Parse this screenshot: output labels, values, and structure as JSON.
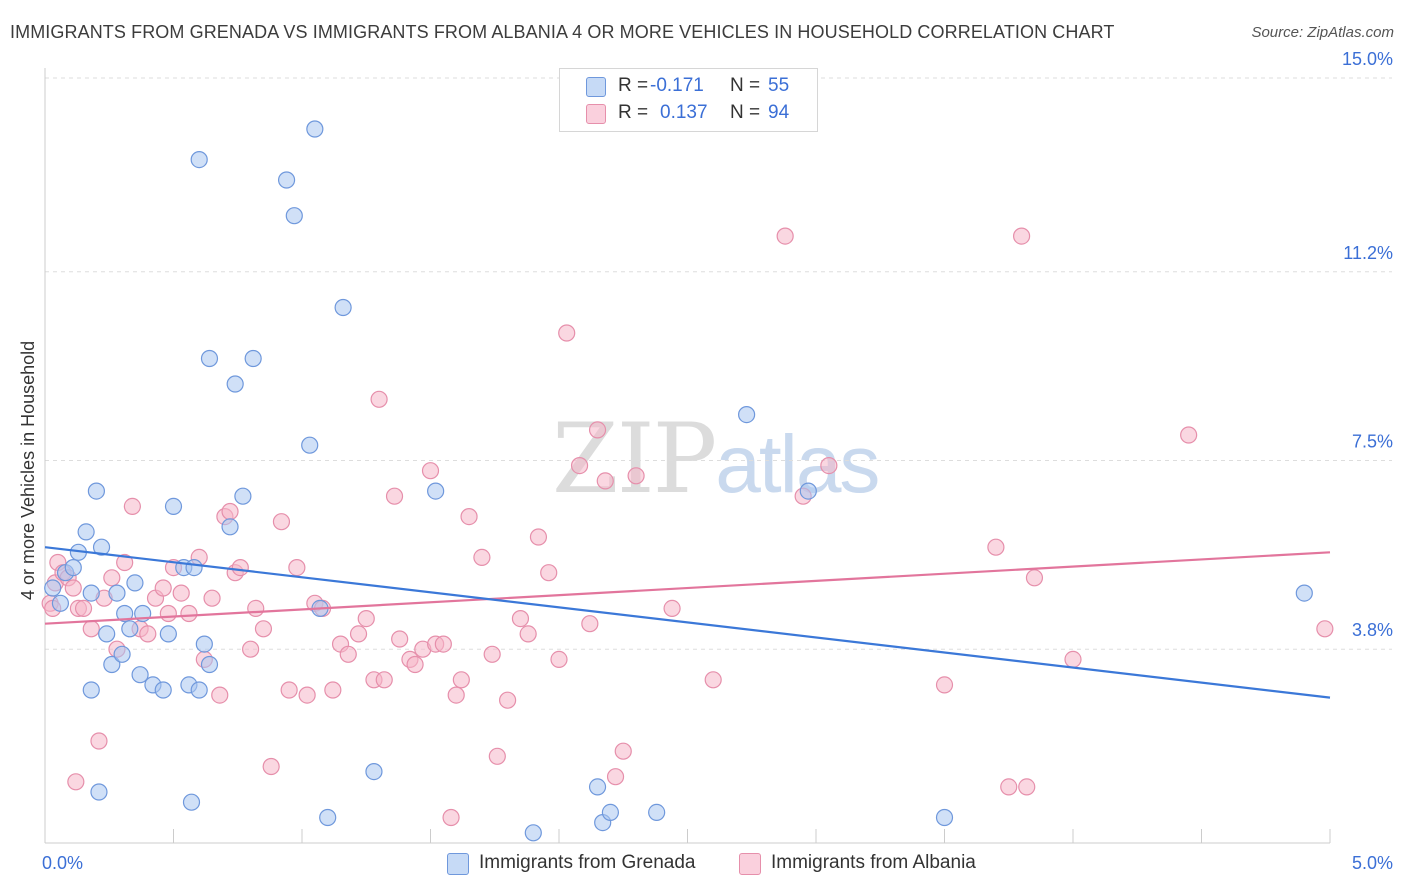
{
  "title": "IMMIGRANTS FROM GRENADA VS IMMIGRANTS FROM ALBANIA 4 OR MORE VEHICLES IN HOUSEHOLD CORRELATION CHART",
  "source": "Source: ZipAtlas.com",
  "watermark": {
    "zip": "ZIP",
    "atlas": "atlas"
  },
  "legend": {
    "rows": [
      {
        "r_label": "R =",
        "r_value": "-0.171",
        "n_label": "N =",
        "n_value": "55",
        "color": "#a9c6f0"
      },
      {
        "r_label": "R =",
        "r_value": "0.137",
        "n_label": "N =",
        "n_value": "94",
        "color": "#f5b6c9"
      }
    ]
  },
  "bottom_legend": {
    "grenada": "Immigrants from Grenada",
    "albania": "Immigrants from Albania"
  },
  "colors": {
    "blue_fill": "#a9c6f0",
    "blue_stroke": "#6f98dc",
    "blue_line": "#3b78d8",
    "pink_fill": "#f5b6c9",
    "pink_stroke": "#e68fab",
    "pink_line": "#e2759c",
    "tick_label": "#3b6fd6",
    "grid": "#dddddd"
  },
  "chart_data": {
    "type": "scatter",
    "title": "IMMIGRANTS FROM GRENADA VS IMMIGRANTS FROM ALBANIA 4 OR MORE VEHICLES IN HOUSEHOLD CORRELATION CHART",
    "xlabel": "",
    "ylabel": "4 or more Vehicles in Household",
    "xlim": [
      0,
      5.0
    ],
    "ylim": [
      0,
      15.0
    ],
    "x_tick_labels": [
      "0.0%",
      "5.0%"
    ],
    "y_ticks": [
      3.8,
      7.5,
      11.2,
      15.0
    ],
    "y_tick_labels": [
      "3.8%",
      "7.5%",
      "11.2%",
      "15.0%"
    ],
    "grid": true,
    "legend_position": "top-center",
    "series": [
      {
        "name": "Immigrants from Grenada",
        "R": -0.171,
        "N": 55,
        "trend": {
          "x": [
            0,
            5.0
          ],
          "y": [
            5.8,
            2.85
          ]
        },
        "points": [
          [
            0.03,
            5.0
          ],
          [
            0.06,
            4.7
          ],
          [
            0.08,
            5.3
          ],
          [
            0.11,
            5.4
          ],
          [
            0.13,
            5.7
          ],
          [
            0.16,
            6.1
          ],
          [
            0.18,
            4.9
          ],
          [
            0.2,
            6.9
          ],
          [
            0.22,
            5.8
          ],
          [
            0.24,
            4.1
          ],
          [
            0.26,
            3.5
          ],
          [
            0.28,
            4.9
          ],
          [
            0.3,
            3.7
          ],
          [
            0.31,
            4.5
          ],
          [
            0.33,
            4.2
          ],
          [
            0.35,
            5.1
          ],
          [
            0.37,
            3.3
          ],
          [
            0.38,
            4.5
          ],
          [
            0.42,
            3.1
          ],
          [
            0.46,
            3.0
          ],
          [
            0.48,
            4.1
          ],
          [
            0.5,
            6.6
          ],
          [
            0.54,
            5.4
          ],
          [
            0.56,
            3.1
          ],
          [
            0.58,
            5.4
          ],
          [
            0.6,
            3.0
          ],
          [
            0.62,
            3.9
          ],
          [
            0.64,
            3.5
          ],
          [
            0.18,
            3.0
          ],
          [
            0.21,
            1.0
          ],
          [
            0.57,
            0.8
          ],
          [
            0.6,
            13.4
          ],
          [
            0.64,
            9.5
          ],
          [
            0.72,
            6.2
          ],
          [
            0.74,
            9.0
          ],
          [
            0.77,
            6.8
          ],
          [
            0.81,
            9.5
          ],
          [
            0.94,
            13.0
          ],
          [
            0.97,
            12.3
          ],
          [
            1.03,
            7.8
          ],
          [
            1.05,
            14.0
          ],
          [
            1.07,
            4.6
          ],
          [
            1.16,
            10.5
          ],
          [
            1.1,
            0.5
          ],
          [
            1.28,
            1.4
          ],
          [
            1.52,
            6.9
          ],
          [
            1.9,
            0.2
          ],
          [
            2.15,
            1.1
          ],
          [
            2.17,
            0.4
          ],
          [
            2.2,
            0.6
          ],
          [
            2.38,
            0.6
          ],
          [
            2.73,
            8.4
          ],
          [
            2.97,
            6.9
          ],
          [
            3.5,
            0.5
          ],
          [
            4.9,
            4.9
          ]
        ]
      },
      {
        "name": "Immigrants from Albania",
        "R": 0.137,
        "N": 94,
        "trend": {
          "x": [
            0,
            5.0
          ],
          "y": [
            4.3,
            5.7
          ]
        },
        "points": [
          [
            0.02,
            4.7
          ],
          [
            0.04,
            5.1
          ],
          [
            0.05,
            5.5
          ],
          [
            0.07,
            5.3
          ],
          [
            0.09,
            5.2
          ],
          [
            0.11,
            5.0
          ],
          [
            0.13,
            4.6
          ],
          [
            0.15,
            4.6
          ],
          [
            0.18,
            4.2
          ],
          [
            0.21,
            2.0
          ],
          [
            0.23,
            4.8
          ],
          [
            0.26,
            5.2
          ],
          [
            0.28,
            3.8
          ],
          [
            0.31,
            5.5
          ],
          [
            0.34,
            6.6
          ],
          [
            0.37,
            4.2
          ],
          [
            0.4,
            4.1
          ],
          [
            0.43,
            4.8
          ],
          [
            0.46,
            5.0
          ],
          [
            0.48,
            4.5
          ],
          [
            0.5,
            5.4
          ],
          [
            0.53,
            4.9
          ],
          [
            0.56,
            4.5
          ],
          [
            0.6,
            5.6
          ],
          [
            0.62,
            3.6
          ],
          [
            0.65,
            4.8
          ],
          [
            0.68,
            2.9
          ],
          [
            0.7,
            6.4
          ],
          [
            0.72,
            6.5
          ],
          [
            0.74,
            5.3
          ],
          [
            0.76,
            5.4
          ],
          [
            0.8,
            3.8
          ],
          [
            0.82,
            4.6
          ],
          [
            0.85,
            4.2
          ],
          [
            0.88,
            1.5
          ],
          [
            0.92,
            6.3
          ],
          [
            0.95,
            3.0
          ],
          [
            0.98,
            5.4
          ],
          [
            1.02,
            2.9
          ],
          [
            1.05,
            4.7
          ],
          [
            1.08,
            4.6
          ],
          [
            1.12,
            3.0
          ],
          [
            1.15,
            3.9
          ],
          [
            1.18,
            3.7
          ],
          [
            1.22,
            4.1
          ],
          [
            1.25,
            4.4
          ],
          [
            1.28,
            3.2
          ],
          [
            1.3,
            8.7
          ],
          [
            1.32,
            3.2
          ],
          [
            1.36,
            6.8
          ],
          [
            1.38,
            4.0
          ],
          [
            1.42,
            3.6
          ],
          [
            1.44,
            3.5
          ],
          [
            1.47,
            3.8
          ],
          [
            1.5,
            7.3
          ],
          [
            1.52,
            3.9
          ],
          [
            1.55,
            3.9
          ],
          [
            1.58,
            0.5
          ],
          [
            1.6,
            2.9
          ],
          [
            1.62,
            3.2
          ],
          [
            1.65,
            6.4
          ],
          [
            1.7,
            5.6
          ],
          [
            1.74,
            3.7
          ],
          [
            1.76,
            1.7
          ],
          [
            1.8,
            2.8
          ],
          [
            1.85,
            4.4
          ],
          [
            1.88,
            4.1
          ],
          [
            1.92,
            6.0
          ],
          [
            1.96,
            5.3
          ],
          [
            2.0,
            3.6
          ],
          [
            2.03,
            10.0
          ],
          [
            2.08,
            7.4
          ],
          [
            2.12,
            4.3
          ],
          [
            2.15,
            8.1
          ],
          [
            2.18,
            7.1
          ],
          [
            2.22,
            1.3
          ],
          [
            2.25,
            1.8
          ],
          [
            2.3,
            7.2
          ],
          [
            2.44,
            4.6
          ],
          [
            2.6,
            3.2
          ],
          [
            2.88,
            11.9
          ],
          [
            2.95,
            6.8
          ],
          [
            3.05,
            7.4
          ],
          [
            3.5,
            3.1
          ],
          [
            3.7,
            5.8
          ],
          [
            3.75,
            1.1
          ],
          [
            3.8,
            11.9
          ],
          [
            3.82,
            1.1
          ],
          [
            3.85,
            5.2
          ],
          [
            4.0,
            3.6
          ],
          [
            4.45,
            8.0
          ],
          [
            4.98,
            4.2
          ],
          [
            0.03,
            4.6
          ],
          [
            0.12,
            1.2
          ]
        ]
      }
    ]
  }
}
